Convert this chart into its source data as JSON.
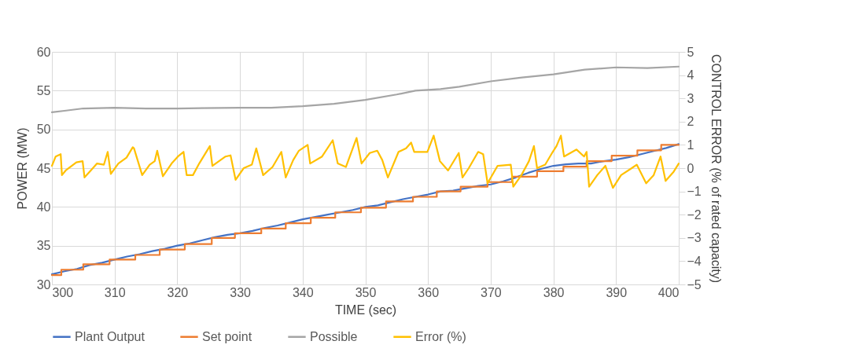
{
  "chart_data": {
    "type": "line",
    "xlabel": "TIME (sec)",
    "ylabel": "POWER (MW)",
    "y2label": "CONTROL ERROR (% of rated capacity)",
    "xlim": [
      300,
      400
    ],
    "xticks": [
      300,
      310,
      320,
      330,
      340,
      350,
      360,
      370,
      380,
      390,
      400
    ],
    "ylim": [
      30,
      60
    ],
    "yticks": [
      30,
      35,
      40,
      45,
      50,
      55,
      60
    ],
    "y2lim": [
      -5,
      5
    ],
    "y2ticks": [
      -5,
      -4,
      -3,
      -2,
      -1,
      0,
      1,
      2,
      3,
      4,
      5
    ],
    "grid": true,
    "legend": "bottom",
    "series": [
      {
        "name": "Plant Output",
        "color": "#4472c4",
        "x": [
          300,
          302,
          304,
          306,
          308,
          310,
          312,
          314,
          316,
          318,
          320,
          322,
          324,
          326,
          328,
          330,
          332,
          334,
          336,
          338,
          340,
          342,
          344,
          346,
          348,
          350,
          352,
          354,
          356,
          358,
          360,
          362,
          364,
          366,
          368,
          370,
          372,
          374,
          376,
          378,
          380,
          382,
          384,
          386,
          388,
          390,
          392,
          394,
          396,
          398,
          400
        ],
        "values": [
          31.3,
          31.7,
          32.0,
          32.5,
          32.8,
          33.2,
          33.6,
          33.9,
          34.3,
          34.6,
          35.0,
          35.3,
          35.7,
          36.1,
          36.4,
          36.6,
          36.9,
          37.3,
          37.6,
          38.0,
          38.4,
          38.7,
          39.0,
          39.3,
          39.6,
          40.0,
          40.2,
          40.6,
          41.0,
          41.3,
          41.6,
          42.0,
          42.1,
          42.4,
          42.7,
          42.9,
          43.3,
          43.8,
          44.4,
          44.9,
          45.3,
          45.5,
          45.6,
          45.6,
          45.9,
          46.1,
          46.4,
          46.8,
          47.2,
          47.6,
          48.1
        ]
      },
      {
        "name": "Set point",
        "type": "step",
        "color": "#ed7d31",
        "x": [
          300,
          301.5,
          305,
          309.2,
          313.3,
          317.2,
          321.2,
          325.5,
          329.2,
          333.4,
          337.3,
          341.3,
          345.2,
          349.3,
          353.3,
          357.6,
          361.4,
          365.2,
          369.5,
          373.4,
          377.4,
          381.6,
          385.3,
          389.3,
          393.4,
          397.2,
          400
        ],
        "values": [
          31.2,
          31.9,
          32.6,
          33.2,
          33.8,
          34.5,
          35.2,
          36.0,
          36.6,
          37.2,
          37.9,
          38.6,
          39.3,
          39.9,
          40.7,
          41.3,
          42.0,
          42.6,
          43.2,
          43.9,
          44.6,
          45.2,
          45.9,
          46.6,
          47.3,
          48.0,
          48.0
        ]
      },
      {
        "name": "Possible",
        "color": "#a5a5a5",
        "x": [
          300,
          302,
          305,
          310,
          315,
          320,
          330,
          335,
          340,
          345,
          350,
          355,
          358,
          362,
          365,
          370,
          375,
          380,
          385,
          390,
          395,
          400
        ],
        "values": [
          52.2,
          52.4,
          52.7,
          52.8,
          52.7,
          52.7,
          52.8,
          52.8,
          53.0,
          53.3,
          53.8,
          54.5,
          55.0,
          55.2,
          55.5,
          56.2,
          56.7,
          57.1,
          57.7,
          58.0,
          57.9,
          58.1
        ]
      },
      {
        "name": "Error (%)",
        "color": "#ffc000",
        "axis": "y2",
        "x": [
          300,
          300.6,
          301.4,
          301.6,
          302.2,
          303.9,
          304.9,
          305.2,
          306.2,
          307.2,
          308.3,
          308.9,
          309.4,
          310.6,
          311.9,
          312.9,
          313.1,
          314.4,
          315.6,
          316.4,
          316.8,
          317.7,
          319.1,
          320.1,
          321.0,
          321.5,
          322.5,
          323.5,
          325.2,
          325.6,
          327.7,
          328.5,
          329.3,
          330.6,
          331.9,
          332.6,
          333.7,
          335.2,
          336.6,
          337.3,
          338.5,
          339.4,
          340.8,
          341.2,
          343.1,
          344.8,
          345.6,
          346.9,
          348.6,
          349.4,
          350.7,
          351.9,
          352.7,
          353.6,
          355.3,
          356.5,
          357.3,
          357.8,
          359.9,
          360.9,
          361.9,
          363.2,
          364.9,
          365.5,
          366.5,
          368.0,
          368.8,
          369.5,
          371.1,
          373.2,
          373.6,
          374.9,
          376.1,
          376.9,
          377.4,
          378.7,
          379.9,
          380.5,
          381.2,
          381.7,
          383.7,
          384.9,
          385.3,
          385.7,
          387.0,
          388.3,
          389.5,
          390.8,
          392.5,
          393.3,
          394.8,
          396.0,
          397.1,
          397.9,
          399.2,
          400
        ],
        "values": [
          0.1,
          0.5,
          0.6,
          -0.3,
          -0.1,
          0.25,
          0.3,
          -0.4,
          -0.1,
          0.2,
          0.15,
          0.7,
          -0.25,
          0.2,
          0.45,
          0.9,
          0.85,
          -0.3,
          0.15,
          0.3,
          0.75,
          -0.35,
          0.2,
          0.5,
          0.7,
          -0.3,
          -0.3,
          0.2,
          0.95,
          0.1,
          0.5,
          0.55,
          -0.5,
          0,
          0.15,
          0.85,
          -0.3,
          0.05,
          0.7,
          -0.4,
          0.35,
          0.75,
          1.0,
          0.2,
          0.5,
          1.2,
          0.2,
          0.05,
          1.3,
          0.2,
          0.65,
          0.75,
          0.35,
          -0.4,
          0.7,
          0.85,
          1.1,
          0.7,
          0.7,
          1.4,
          0.3,
          -0.1,
          0.65,
          -0.4,
          0,
          0.7,
          0.6,
          -0.65,
          0.1,
          0.15,
          -0.8,
          -0.3,
          0.3,
          0.95,
          0,
          0.15,
          0.7,
          0.95,
          1.4,
          0.5,
          0.8,
          0.5,
          0.7,
          -0.8,
          -0.3,
          0.1,
          -0.85,
          -0.3,
          0,
          0.15,
          -0.65,
          -0.3,
          0.5,
          -0.55,
          -0.15,
          0.2
        ]
      }
    ]
  }
}
